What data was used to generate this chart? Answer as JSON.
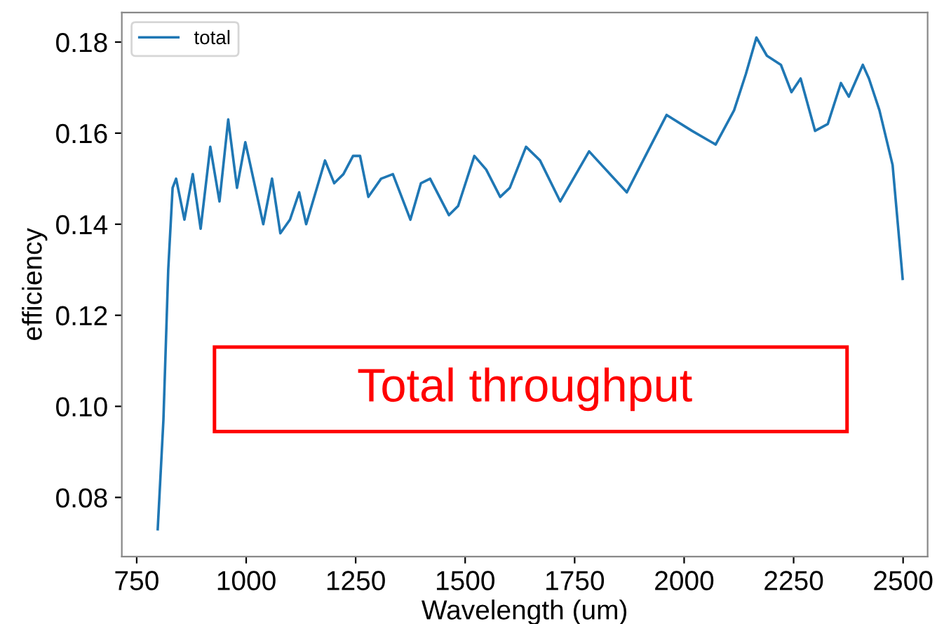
{
  "chart_data": {
    "type": "line",
    "xlabel": "Wavelength (um)",
    "ylabel": "efficiency",
    "annotations": [
      "Total throughput"
    ],
    "xlim": [
      716,
      2556
    ],
    "xticks": [
      750,
      1000,
      1250,
      1500,
      1750,
      2000,
      2250,
      2500
    ],
    "ylim": [
      0.067,
      0.1865
    ],
    "yticks": [
      0.08,
      {
        "value": 0.1,
        "label": "0.10"
      },
      0.12,
      0.14,
      0.16,
      0.18
    ],
    "legend": "top left",
    "series": [
      {
        "name": "total",
        "color": "#1f77b4",
        "x": [
          798,
          811,
          822,
          832,
          840,
          859,
          878,
          896,
          918,
          939,
          959,
          979,
          998,
          1005,
          1039,
          1059,
          1078,
          1100,
          1121,
          1137,
          1180,
          1201,
          1222,
          1244,
          1260,
          1279,
          1308,
          1335,
          1375,
          1399,
          1420,
          1463,
          1484,
          1521,
          1548,
          1580,
          1602,
          1639,
          1671,
          1717,
          1783,
          1869,
          1917,
          1960,
          2018,
          2072,
          2114,
          2141,
          2165,
          2189,
          2221,
          2245,
          2266,
          2299,
          2328,
          2358,
          2376,
          2408,
          2422,
          2446,
          2476,
          2488,
          2499
        ],
        "values": [
          0.073,
          0.097,
          0.13,
          0.148,
          0.15,
          0.141,
          0.151,
          0.139,
          0.157,
          0.145,
          0.163,
          0.148,
          0.158,
          0.155,
          0.14,
          0.15,
          0.138,
          0.141,
          0.147,
          0.14,
          0.154,
          0.149,
          0.151,
          0.155,
          0.155,
          0.146,
          0.15,
          0.151,
          0.141,
          0.149,
          0.15,
          0.142,
          0.144,
          0.155,
          0.152,
          0.146,
          0.148,
          0.157,
          0.154,
          0.145,
          0.156,
          0.147,
          0.156,
          0.164,
          0.1605,
          0.1575,
          0.165,
          0.173,
          0.181,
          0.177,
          0.175,
          0.169,
          0.172,
          0.1605,
          0.162,
          0.171,
          0.168,
          0.175,
          0.172,
          0.165,
          0.153,
          0.14,
          0.128
        ]
      }
    ]
  }
}
